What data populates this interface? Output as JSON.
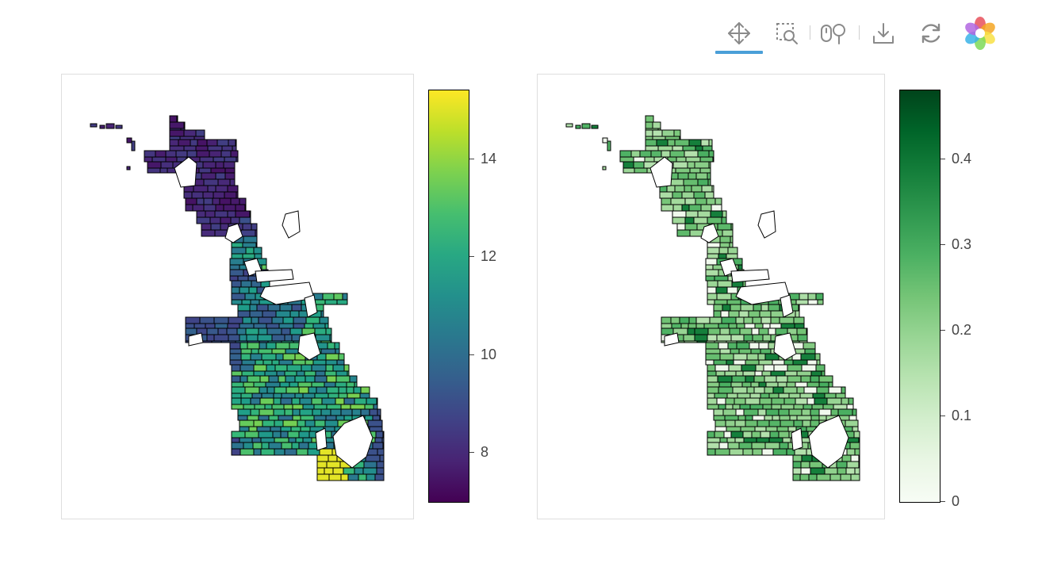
{
  "toolbar": {
    "tools": [
      {
        "name": "pan-tool",
        "icon": "move-arrows-icon",
        "active": true
      },
      {
        "name": "box-zoom-tool",
        "icon": "box-zoom-icon",
        "active": false
      },
      {
        "name": "wheel-zoom-tool",
        "icon": "wheel-zoom-icon",
        "active": false
      },
      {
        "name": "save-tool",
        "icon": "download-icon",
        "active": false
      },
      {
        "name": "reset-tool",
        "icon": "reset-icon",
        "active": false
      },
      {
        "name": "bokeh-logo",
        "icon": "bokeh-logo-icon",
        "active": false
      }
    ]
  },
  "maps": [
    {
      "name": "left-map",
      "colormap": "viridis",
      "range": [
        7.0,
        15.4
      ],
      "colorbar": {
        "ticks": [
          {
            "value": 8,
            "label": "8"
          },
          {
            "value": 10,
            "label": "10"
          },
          {
            "value": 12,
            "label": "12"
          },
          {
            "value": 14,
            "label": "14"
          }
        ]
      }
    },
    {
      "name": "right-map",
      "colormap": "greens",
      "range": [
        0,
        0.48
      ],
      "colorbar": {
        "ticks": [
          {
            "value": 0,
            "label": "0"
          },
          {
            "value": 0.1,
            "label": "0.1"
          },
          {
            "value": 0.2,
            "label": "0.2"
          },
          {
            "value": 0.3,
            "label": "0.3"
          },
          {
            "value": 0.4,
            "label": "0.4"
          }
        ]
      }
    }
  ]
}
